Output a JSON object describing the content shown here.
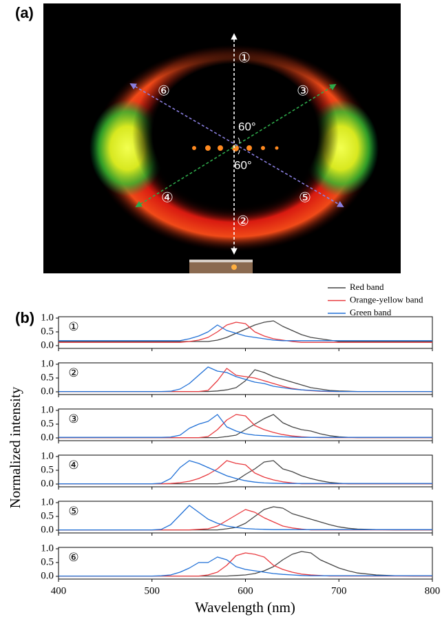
{
  "figure": {
    "label_a": "(a)",
    "label_b": "(b)",
    "photo_labels": [
      "①",
      "②",
      "③",
      "④",
      "⑤",
      "⑥"
    ],
    "angle_labels": [
      "60°",
      "60°"
    ],
    "ylabel": "Normalized intensity",
    "xlabel": "Wavelength (nm)"
  },
  "chart_data": [
    {
      "type": "line",
      "panel_label": "①",
      "x": [
        400,
        440,
        480,
        500,
        510,
        520,
        530,
        540,
        550,
        560,
        570,
        580,
        590,
        600,
        610,
        620,
        630,
        640,
        650,
        660,
        670,
        680,
        690,
        700,
        710,
        720,
        740,
        760,
        780,
        800
      ],
      "xlim": [
        400,
        800
      ],
      "xticks": [
        400,
        500,
        600,
        700,
        800
      ],
      "ylim": [
        -0.1,
        1.05
      ],
      "yticks": [
        {
          "value": 0,
          "label": "0.0"
        },
        {
          "value": 0.5,
          "label": "0.5"
        },
        {
          "value": 1,
          "label": "1.0"
        }
      ],
      "series": [
        {
          "name": "Red band",
          "color": "#444444",
          "values": [
            0.15,
            0.15,
            0.15,
            0.15,
            0.15,
            0.15,
            0.15,
            0.15,
            0.15,
            0.15,
            0.2,
            0.3,
            0.45,
            0.6,
            0.75,
            0.85,
            0.9,
            0.7,
            0.55,
            0.4,
            0.3,
            0.25,
            0.2,
            0.15,
            0.15,
            0.15,
            0.15,
            0.15,
            0.15,
            0.15
          ]
        },
        {
          "name": "Orange-yellow band",
          "color": "#e8383d",
          "values": [
            0.12,
            0.12,
            0.12,
            0.12,
            0.12,
            0.12,
            0.12,
            0.15,
            0.2,
            0.3,
            0.5,
            0.75,
            0.85,
            0.8,
            0.5,
            0.35,
            0.25,
            0.2,
            0.15,
            0.12,
            0.12,
            0.12,
            0.12,
            0.12,
            0.12,
            0.12,
            0.12,
            0.12,
            0.12,
            0.12
          ]
        },
        {
          "name": "Green band",
          "color": "#1f6fd6",
          "values": [
            0.18,
            0.18,
            0.18,
            0.18,
            0.18,
            0.18,
            0.18,
            0.25,
            0.35,
            0.5,
            0.75,
            0.55,
            0.45,
            0.35,
            0.3,
            0.25,
            0.2,
            0.18,
            0.18,
            0.18,
            0.18,
            0.18,
            0.18,
            0.18,
            0.18,
            0.18,
            0.18,
            0.18,
            0.18,
            0.18
          ]
        }
      ]
    },
    {
      "type": "line",
      "panel_label": "②",
      "x": [
        400,
        440,
        480,
        500,
        510,
        520,
        530,
        540,
        550,
        560,
        570,
        580,
        590,
        600,
        610,
        620,
        630,
        640,
        650,
        660,
        670,
        680,
        690,
        700,
        710,
        720,
        740,
        760,
        780,
        800
      ],
      "xlim": [
        400,
        800
      ],
      "xticks": [
        400,
        500,
        600,
        700,
        800
      ],
      "ylim": [
        -0.1,
        1.05
      ],
      "yticks": [
        {
          "value": 0,
          "label": "0.0"
        },
        {
          "value": 0.5,
          "label": "0.5"
        },
        {
          "value": 1,
          "label": "1.0"
        }
      ],
      "series": [
        {
          "color": "#444444",
          "values": [
            0.01,
            0.01,
            0.01,
            0.01,
            0.01,
            0.01,
            0.01,
            0.01,
            0.01,
            0.01,
            0.03,
            0.07,
            0.15,
            0.4,
            0.8,
            0.7,
            0.55,
            0.45,
            0.35,
            0.25,
            0.15,
            0.1,
            0.05,
            0.03,
            0.02,
            0.01,
            0.01,
            0.01,
            0.01,
            0.01
          ]
        },
        {
          "color": "#e8383d",
          "values": [
            0.01,
            0.01,
            0.01,
            0.01,
            0.01,
            0.01,
            0.01,
            0.01,
            0.01,
            0.05,
            0.4,
            0.85,
            0.6,
            0.55,
            0.5,
            0.4,
            0.3,
            0.2,
            0.12,
            0.07,
            0.04,
            0.02,
            0.01,
            0.01,
            0.01,
            0.01,
            0.01,
            0.01,
            0.01,
            0.01
          ]
        },
        {
          "color": "#1f6fd6",
          "values": [
            0.01,
            0.01,
            0.01,
            0.01,
            0.01,
            0.02,
            0.1,
            0.3,
            0.6,
            0.9,
            0.75,
            0.7,
            0.55,
            0.45,
            0.35,
            0.3,
            0.2,
            0.15,
            0.1,
            0.07,
            0.05,
            0.03,
            0.02,
            0.01,
            0.01,
            0.01,
            0.01,
            0.01,
            0.01,
            0.01
          ]
        }
      ]
    },
    {
      "type": "line",
      "panel_label": "③",
      "x": [
        400,
        440,
        480,
        500,
        510,
        520,
        530,
        540,
        550,
        560,
        570,
        580,
        590,
        600,
        610,
        620,
        630,
        640,
        650,
        660,
        670,
        680,
        690,
        700,
        710,
        720,
        740,
        760,
        780,
        800
      ],
      "xlim": [
        400,
        800
      ],
      "xticks": [
        400,
        500,
        600,
        700,
        800
      ],
      "ylim": [
        -0.1,
        1.05
      ],
      "yticks": [
        {
          "value": 0,
          "label": "0.0"
        },
        {
          "value": 0.5,
          "label": "0.5"
        },
        {
          "value": 1,
          "label": "1.0"
        }
      ],
      "series": [
        {
          "color": "#444444",
          "values": [
            0.01,
            0.01,
            0.01,
            0.01,
            0.01,
            0.01,
            0.01,
            0.01,
            0.01,
            0.01,
            0.01,
            0.05,
            0.1,
            0.3,
            0.5,
            0.7,
            0.85,
            0.55,
            0.4,
            0.3,
            0.25,
            0.15,
            0.08,
            0.04,
            0.02,
            0.01,
            0.01,
            0.01,
            0.01,
            0.01
          ]
        },
        {
          "color": "#e8383d",
          "values": [
            0.01,
            0.01,
            0.01,
            0.01,
            0.01,
            0.01,
            0.01,
            0.01,
            0.01,
            0.05,
            0.3,
            0.65,
            0.85,
            0.8,
            0.45,
            0.3,
            0.2,
            0.12,
            0.07,
            0.04,
            0.02,
            0.01,
            0.01,
            0.01,
            0.01,
            0.01,
            0.01,
            0.01,
            0.01,
            0.01
          ]
        },
        {
          "color": "#1f6fd6",
          "values": [
            0.02,
            0.02,
            0.02,
            0.02,
            0.02,
            0.03,
            0.1,
            0.35,
            0.5,
            0.6,
            0.85,
            0.4,
            0.25,
            0.15,
            0.1,
            0.08,
            0.06,
            0.04,
            0.03,
            0.02,
            0.02,
            0.02,
            0.02,
            0.02,
            0.02,
            0.02,
            0.02,
            0.02,
            0.02,
            0.02
          ]
        }
      ]
    },
    {
      "type": "line",
      "panel_label": "④",
      "x": [
        400,
        440,
        480,
        500,
        510,
        520,
        530,
        540,
        550,
        560,
        570,
        580,
        590,
        600,
        610,
        620,
        630,
        640,
        650,
        660,
        670,
        680,
        690,
        700,
        710,
        720,
        740,
        760,
        780,
        800
      ],
      "xlim": [
        400,
        800
      ],
      "xticks": [
        400,
        500,
        600,
        700,
        800
      ],
      "ylim": [
        -0.1,
        1.05
      ],
      "yticks": [
        {
          "value": 0,
          "label": "0.0"
        },
        {
          "value": 0.5,
          "label": "0.5"
        },
        {
          "value": 1,
          "label": "1.0"
        }
      ],
      "series": [
        {
          "color": "#444444",
          "values": [
            0.01,
            0.01,
            0.01,
            0.01,
            0.01,
            0.01,
            0.01,
            0.01,
            0.01,
            0.01,
            0.01,
            0.05,
            0.12,
            0.35,
            0.55,
            0.8,
            0.85,
            0.55,
            0.45,
            0.3,
            0.2,
            0.12,
            0.06,
            0.03,
            0.01,
            0.01,
            0.01,
            0.01,
            0.01,
            0.01
          ]
        },
        {
          "color": "#e8383d",
          "values": [
            0.01,
            0.01,
            0.01,
            0.01,
            0.01,
            0.02,
            0.05,
            0.1,
            0.2,
            0.35,
            0.55,
            0.85,
            0.75,
            0.7,
            0.4,
            0.25,
            0.15,
            0.08,
            0.04,
            0.01,
            0.01,
            0.01,
            0.01,
            0.01,
            0.01,
            0.01,
            0.01,
            0.01,
            0.01,
            0.01
          ]
        },
        {
          "color": "#1f6fd6",
          "values": [
            0.01,
            0.01,
            0.01,
            0.01,
            0.03,
            0.2,
            0.6,
            0.85,
            0.75,
            0.6,
            0.45,
            0.3,
            0.2,
            0.12,
            0.07,
            0.04,
            0.03,
            0.02,
            0.02,
            0.02,
            0.02,
            0.02,
            0.02,
            0.02,
            0.02,
            0.02,
            0.02,
            0.02,
            0.02,
            0.02
          ]
        }
      ]
    },
    {
      "type": "line",
      "panel_label": "⑤",
      "x": [
        400,
        440,
        480,
        500,
        510,
        520,
        530,
        540,
        550,
        560,
        570,
        580,
        590,
        600,
        610,
        620,
        630,
        640,
        650,
        660,
        670,
        680,
        690,
        700,
        710,
        720,
        740,
        760,
        780,
        800
      ],
      "xlim": [
        400,
        800
      ],
      "xticks": [
        400,
        500,
        600,
        700,
        800
      ],
      "ylim": [
        -0.1,
        1.05
      ],
      "yticks": [
        {
          "value": 0,
          "label": "0.0"
        },
        {
          "value": 0.5,
          "label": "0.5"
        },
        {
          "value": 1,
          "label": "1.0"
        }
      ],
      "series": [
        {
          "color": "#444444",
          "values": [
            0.01,
            0.01,
            0.01,
            0.01,
            0.01,
            0.01,
            0.01,
            0.01,
            0.01,
            0.01,
            0.01,
            0.05,
            0.1,
            0.25,
            0.5,
            0.75,
            0.85,
            0.8,
            0.6,
            0.5,
            0.4,
            0.3,
            0.2,
            0.12,
            0.07,
            0.04,
            0.02,
            0.01,
            0.01,
            0.01
          ]
        },
        {
          "color": "#e8383d",
          "values": [
            0.01,
            0.01,
            0.01,
            0.01,
            0.01,
            0.01,
            0.01,
            0.01,
            0.03,
            0.05,
            0.15,
            0.35,
            0.55,
            0.75,
            0.65,
            0.45,
            0.3,
            0.15,
            0.08,
            0.04,
            0.01,
            0.01,
            0.01,
            0.01,
            0.01,
            0.01,
            0.01,
            0.01,
            0.01,
            0.01
          ]
        },
        {
          "color": "#1f6fd6",
          "values": [
            0.01,
            0.01,
            0.01,
            0.01,
            0.03,
            0.2,
            0.55,
            0.9,
            0.65,
            0.4,
            0.25,
            0.15,
            0.1,
            0.06,
            0.04,
            0.03,
            0.02,
            0.02,
            0.02,
            0.02,
            0.02,
            0.02,
            0.02,
            0.02,
            0.02,
            0.02,
            0.02,
            0.02,
            0.02,
            0.02
          ]
        }
      ]
    },
    {
      "type": "line",
      "panel_label": "⑥",
      "x": [
        400,
        440,
        480,
        500,
        510,
        520,
        530,
        540,
        550,
        560,
        570,
        580,
        590,
        600,
        610,
        620,
        630,
        640,
        650,
        660,
        670,
        680,
        690,
        700,
        710,
        720,
        740,
        760,
        780,
        800
      ],
      "xlim": [
        400,
        800
      ],
      "xticks": [
        400,
        500,
        600,
        700,
        800
      ],
      "ylim": [
        -0.1,
        1.05
      ],
      "yticks": [
        {
          "value": 0,
          "label": "0.0"
        },
        {
          "value": 0.5,
          "label": "0.5"
        },
        {
          "value": 1,
          "label": "1.0"
        }
      ],
      "series": [
        {
          "color": "#444444",
          "values": [
            0.01,
            0.01,
            0.01,
            0.01,
            0.01,
            0.01,
            0.01,
            0.01,
            0.01,
            0.01,
            0.01,
            0.01,
            0.03,
            0.05,
            0.1,
            0.2,
            0.35,
            0.6,
            0.8,
            0.9,
            0.85,
            0.6,
            0.45,
            0.3,
            0.2,
            0.12,
            0.05,
            0.02,
            0.01,
            0.01
          ]
        },
        {
          "color": "#e8383d",
          "values": [
            0.01,
            0.01,
            0.01,
            0.01,
            0.01,
            0.01,
            0.01,
            0.01,
            0.01,
            0.05,
            0.15,
            0.4,
            0.75,
            0.85,
            0.8,
            0.7,
            0.4,
            0.25,
            0.15,
            0.08,
            0.05,
            0.03,
            0.01,
            0.01,
            0.01,
            0.01,
            0.01,
            0.01,
            0.01,
            0.01
          ]
        },
        {
          "color": "#1f6fd6",
          "values": [
            0.01,
            0.01,
            0.01,
            0.01,
            0.02,
            0.05,
            0.15,
            0.3,
            0.5,
            0.5,
            0.7,
            0.6,
            0.35,
            0.25,
            0.2,
            0.15,
            0.1,
            0.07,
            0.05,
            0.03,
            0.02,
            0.02,
            0.02,
            0.02,
            0.02,
            0.02,
            0.02,
            0.02,
            0.02,
            0.02
          ]
        }
      ]
    }
  ]
}
